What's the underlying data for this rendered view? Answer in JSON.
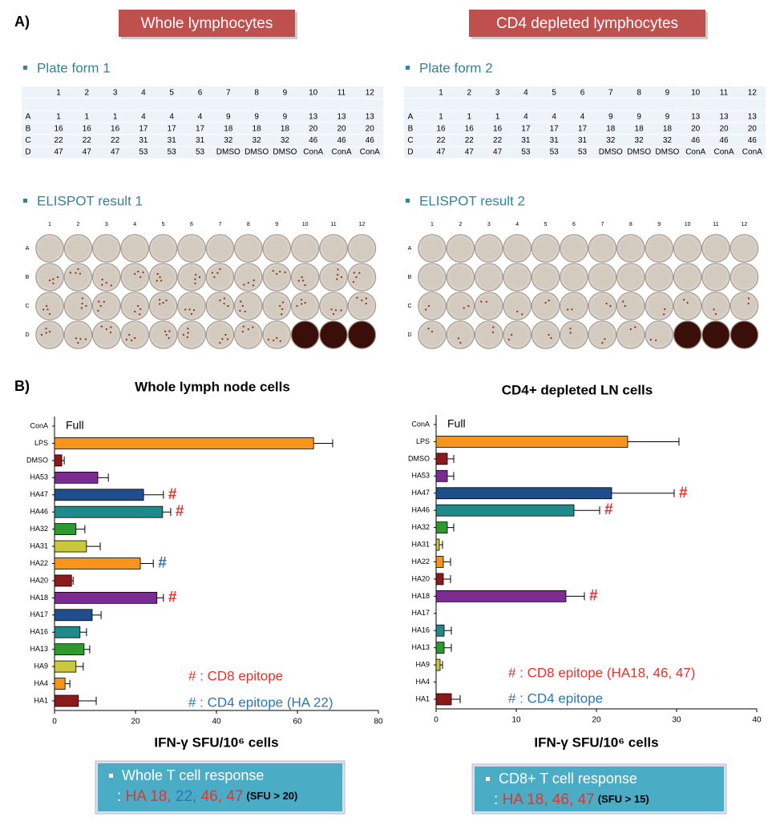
{
  "panel_a": {
    "label": "A)",
    "groups": [
      {
        "header": "Whole lymphocytes",
        "plate_title": "Plate form 1",
        "columns": [
          "1",
          "2",
          "3",
          "4",
          "5",
          "6",
          "7",
          "8",
          "9",
          "10",
          "11",
          "12"
        ],
        "rows": [
          {
            "label": "A",
            "cells": [
              1,
              1,
              1,
              4,
              4,
              4,
              9,
              9,
              9,
              13,
              13,
              13
            ]
          },
          {
            "label": "B",
            "cells": [
              16,
              16,
              16,
              17,
              17,
              17,
              18,
              18,
              18,
              20,
              20,
              20
            ]
          },
          {
            "label": "C",
            "cells": [
              22,
              22,
              22,
              31,
              31,
              31,
              32,
              32,
              32,
              46,
              46,
              46
            ]
          },
          {
            "label": "D",
            "cells": [
              47,
              47,
              47,
              53,
              53,
              53,
              "DMSO",
              "DMSO",
              "DMSO",
              "ConA",
              "ConA",
              "ConA"
            ]
          }
        ],
        "elispot_title": "ELISPOT result 1",
        "elispot_columns": [
          "1",
          "2",
          "3",
          "4",
          "5",
          "6",
          "7",
          "8",
          "9",
          "10",
          "11",
          "12"
        ],
        "elispot_rows": [
          "A",
          "B",
          "C",
          "D"
        ]
      },
      {
        "header": "CD4 depleted lymphocytes",
        "plate_title": "Plate form 2",
        "columns": [
          "1",
          "2",
          "3",
          "4",
          "5",
          "6",
          "7",
          "8",
          "9",
          "10",
          "11",
          "12"
        ],
        "rows": [
          {
            "label": "A",
            "cells": [
              1,
              1,
              1,
              4,
              4,
              4,
              9,
              9,
              9,
              13,
              13,
              13
            ]
          },
          {
            "label": "B",
            "cells": [
              16,
              16,
              16,
              17,
              17,
              17,
              18,
              18,
              18,
              20,
              20,
              20
            ]
          },
          {
            "label": "C",
            "cells": [
              22,
              22,
              22,
              31,
              31,
              31,
              32,
              32,
              32,
              46,
              46,
              46
            ]
          },
          {
            "label": "D",
            "cells": [
              47,
              47,
              47,
              53,
              53,
              53,
              "DMSO",
              "DMSO",
              "DMSO",
              "ConA",
              "ConA",
              "ConA"
            ]
          }
        ],
        "elispot_title": "ELISPOT result 2",
        "elispot_columns": [
          "1",
          "2",
          "3",
          "4",
          "5",
          "6",
          "7",
          "8",
          "9",
          "10",
          "11",
          "12"
        ],
        "elispot_rows": [
          "A",
          "B",
          "C",
          "D"
        ]
      }
    ]
  },
  "panel_b_label": "B)",
  "chart_data": [
    {
      "type": "bar",
      "orientation": "horizontal",
      "title": "Whole lymph node cells",
      "categories": [
        "ConA",
        "LPS",
        "DMSO",
        "HA53",
        "HA47",
        "HA46",
        "HA32",
        "HA31",
        "HA22",
        "HA20",
        "HA18",
        "HA17",
        "HA16",
        "HA13",
        "HA9",
        "HA4",
        "HA1"
      ],
      "values": [
        null,
        64,
        1.8,
        10.7,
        22,
        26.7,
        5.3,
        7.9,
        21.2,
        4.2,
        25.3,
        9.3,
        6.3,
        7.3,
        5.3,
        2.6,
        5.9
      ],
      "errors": [
        null,
        4.7,
        0.6,
        2.6,
        4.9,
        2,
        2.2,
        3.4,
        3.2,
        0.4,
        1.6,
        2.2,
        1.6,
        1.4,
        1.8,
        1.2,
        4.4
      ],
      "colors": [
        null,
        "#f7941d",
        "#8b1a1a",
        "#7b2c8f",
        "#1f4e8c",
        "#1f8a8a",
        "#2e9a2e",
        "#c8c83a",
        "#f7941d",
        "#8b1a1a",
        "#7b2c8f",
        "#1f4e8c",
        "#1f8a8a",
        "#2e9a2e",
        "#c8c83a",
        "#f7941d",
        "#8b1a1a"
      ],
      "bar_labels": [
        "Full",
        null,
        null,
        null,
        "#",
        "#",
        null,
        null,
        "#",
        null,
        "#",
        null,
        null,
        null,
        null,
        null,
        null
      ],
      "bar_label_colors": [
        "#000000",
        null,
        null,
        null,
        "#e8322a",
        "#e8322a",
        null,
        null,
        "#2e75b6",
        null,
        "#e8322a",
        null,
        null,
        null,
        null,
        null,
        null
      ],
      "xlim": [
        0,
        80
      ],
      "xticks": [
        0,
        20,
        40,
        60,
        80
      ],
      "xlabel": "IFN-γ SFU/10⁶ cells",
      "legend": [
        {
          "text": "# : CD8 epitope",
          "color": "#e8322a"
        },
        {
          "text": "# : CD4 epitope (HA 22)",
          "color": "#2e75b6"
        }
      ],
      "summary": {
        "title": "Whole T cell response",
        "parts": [
          {
            "text": ": ",
            "color": "#ffffff"
          },
          {
            "text": "HA 18,",
            "color": "#e8322a"
          },
          {
            "text": " 22,",
            "color": "#2e75b6"
          },
          {
            "text": " 46, 47",
            "color": "#e8322a"
          }
        ],
        "note": "(SFU > 20)"
      }
    },
    {
      "type": "bar",
      "orientation": "horizontal",
      "title": "CD4+ depleted LN cells",
      "categories": [
        "ConA",
        "LPS",
        "DMSO",
        "HA53",
        "HA47",
        "HA46",
        "HA32",
        "HA31",
        "HA22",
        "HA20",
        "HA18",
        "HA17",
        "HA16",
        "HA13",
        "HA9",
        "HA4",
        "HA1"
      ],
      "values": [
        null,
        23.9,
        1.4,
        1.4,
        21.9,
        17.2,
        1.4,
        0.4,
        0.9,
        0.9,
        16.2,
        0,
        1,
        1,
        0.5,
        0,
        1.9
      ],
      "errors": [
        null,
        6.4,
        0.8,
        0.8,
        7.8,
        3.2,
        0.8,
        0.4,
        0.9,
        0.9,
        2.3,
        0,
        0.9,
        0.9,
        0.3,
        0,
        1.1
      ],
      "colors": [
        null,
        "#f7941d",
        "#8b1a1a",
        "#7b2c8f",
        "#1f4e8c",
        "#1f8a8a",
        "#2e9a2e",
        "#c8c83a",
        "#f7941d",
        "#8b1a1a",
        "#7b2c8f",
        "#1f4e8c",
        "#1f8a8a",
        "#2e9a2e",
        "#c8c83a",
        "#f7941d",
        "#8b1a1a"
      ],
      "bar_labels": [
        "Full",
        null,
        null,
        null,
        "#",
        "#",
        null,
        null,
        null,
        null,
        "#",
        null,
        null,
        null,
        null,
        null,
        null
      ],
      "bar_label_colors": [
        "#000000",
        null,
        null,
        null,
        "#e8322a",
        "#e8322a",
        null,
        null,
        null,
        null,
        "#e8322a",
        null,
        null,
        null,
        null,
        null,
        null
      ],
      "xlim": [
        0,
        40
      ],
      "xticks": [
        0,
        10,
        20,
        30,
        40
      ],
      "xlabel": "IFN-γ SFU/10⁶ cells",
      "legend": [
        {
          "text": "# : CD8 epitope (HA18, 46, 47)",
          "color": "#e8322a"
        },
        {
          "text": "# : CD4 epitope",
          "color": "#2e75b6"
        }
      ],
      "summary": {
        "title": "CD8+ T cell response",
        "parts": [
          {
            "text": ": ",
            "color": "#ffffff"
          },
          {
            "text": "HA 18, 46, 47",
            "color": "#e8322a"
          }
        ],
        "note": "(SFU > 15)"
      }
    }
  ]
}
